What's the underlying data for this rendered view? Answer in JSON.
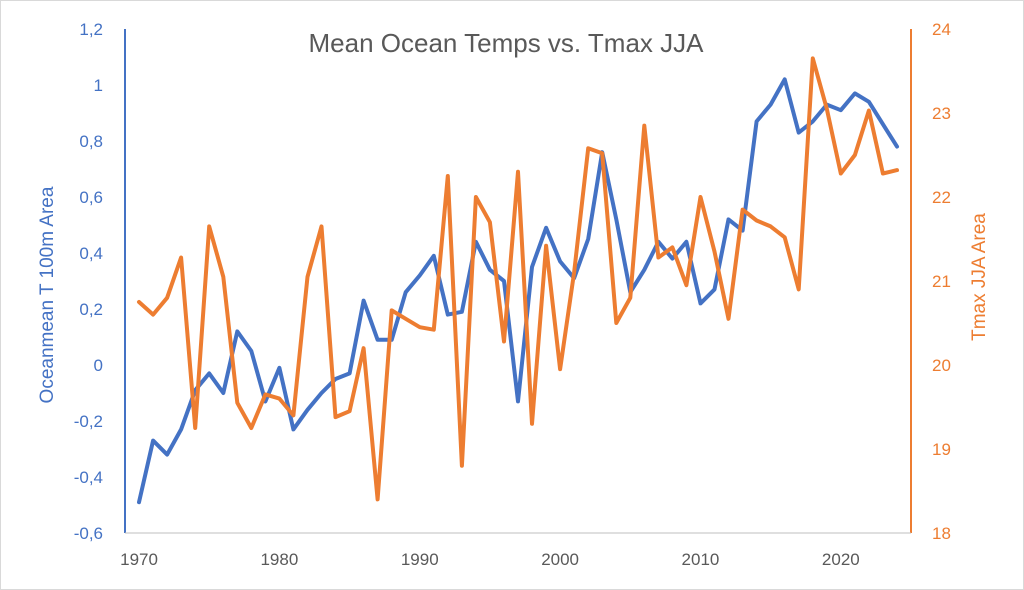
{
  "chart_data": {
    "type": "line",
    "title": "Mean Ocean Temps vs. Tmax JJA",
    "x": [
      1970,
      1971,
      1972,
      1973,
      1974,
      1975,
      1976,
      1977,
      1978,
      1979,
      1980,
      1981,
      1982,
      1983,
      1984,
      1985,
      1986,
      1987,
      1988,
      1989,
      1990,
      1991,
      1992,
      1993,
      1994,
      1995,
      1996,
      1997,
      1998,
      1999,
      2000,
      2001,
      2002,
      2003,
      2004,
      2005,
      2006,
      2007,
      2008,
      2009,
      2010,
      2011,
      2012,
      2013,
      2014,
      2015,
      2016,
      2017,
      2018,
      2019,
      2020,
      2021,
      2022,
      2023,
      2024
    ],
    "x_ticks": [
      "1970",
      "1980",
      "1990",
      "2000",
      "2010",
      "2020"
    ],
    "xlim": [
      1969,
      2025
    ],
    "y_left": {
      "label": "Oceanmean T 100m Area",
      "lim": [
        -0.6,
        1.2
      ],
      "ticks": [
        "-0,6",
        "-0,4",
        "-0,2",
        "0",
        "0,2",
        "0,4",
        "0,6",
        "0,8",
        "1",
        "1,2"
      ],
      "color": "#4472C4"
    },
    "y_right": {
      "label": "Tmax JJA Area",
      "lim": [
        18,
        24
      ],
      "ticks": [
        "18",
        "19",
        "20",
        "21",
        "22",
        "23",
        "24"
      ],
      "color": "#ED7D31"
    },
    "series": [
      {
        "axis": "left",
        "color": "#4472C4",
        "values": [
          -0.49,
          -0.27,
          -0.32,
          -0.23,
          -0.09,
          -0.03,
          -0.1,
          0.12,
          0.05,
          -0.13,
          -0.01,
          -0.23,
          -0.16,
          -0.1,
          -0.05,
          -0.03,
          0.23,
          0.09,
          0.09,
          0.26,
          0.32,
          0.39,
          0.18,
          0.19,
          0.44,
          0.34,
          0.3,
          -0.13,
          0.35,
          0.49,
          0.37,
          0.31,
          0.45,
          0.76,
          0.52,
          0.26,
          0.34,
          0.44,
          0.38,
          0.44,
          0.22,
          0.27,
          0.52,
          0.48,
          0.87,
          0.93,
          1.02,
          0.83,
          0.87,
          0.93,
          0.91,
          0.97,
          0.94,
          0.86,
          0.78
        ]
      },
      {
        "axis": "right",
        "color": "#ED7D31",
        "values": [
          20.75,
          20.6,
          20.8,
          21.28,
          19.25,
          21.65,
          21.05,
          19.55,
          19.25,
          19.65,
          19.6,
          19.4,
          21.05,
          21.65,
          19.38,
          19.45,
          20.2,
          18.4,
          20.65,
          20.55,
          20.45,
          20.42,
          22.25,
          18.8,
          22.0,
          21.7,
          20.28,
          22.3,
          19.3,
          21.42,
          19.95,
          21.1,
          22.58,
          22.52,
          20.5,
          20.8,
          22.85,
          21.28,
          21.4,
          20.95,
          22.0,
          21.35,
          20.55,
          21.85,
          21.72,
          21.65,
          21.52,
          20.9,
          23.65,
          23.05,
          22.28,
          22.5,
          23.03,
          22.28,
          22.32
        ]
      }
    ],
    "grid": false,
    "legend": "none"
  }
}
